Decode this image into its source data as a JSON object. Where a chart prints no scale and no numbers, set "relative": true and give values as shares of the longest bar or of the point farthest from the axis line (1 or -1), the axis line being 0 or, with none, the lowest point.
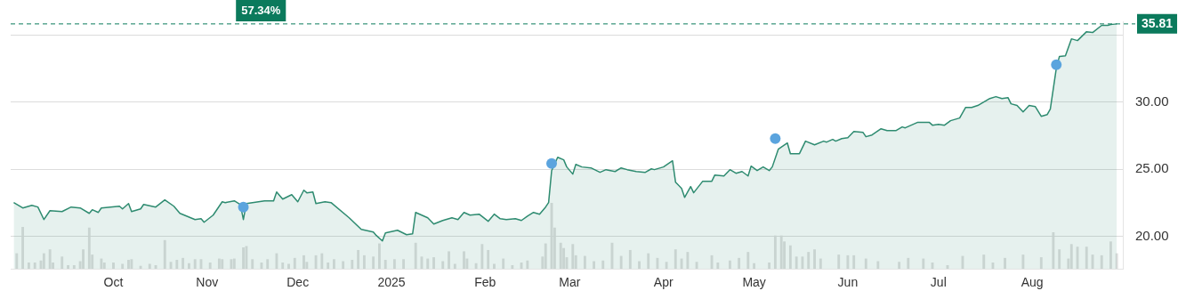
{
  "chart_data": [
    {
      "type": "area",
      "grid": "y",
      "legend": false,
      "xlim": [
        "2024-08-28",
        "2025-08-31"
      ],
      "xticks": [
        {
          "value": "2024-10-01",
          "label": "Oct"
        },
        {
          "value": "2024-11-01",
          "label": "Nov"
        },
        {
          "value": "2024-12-01",
          "label": "Dec"
        },
        {
          "value": "2025-01-01",
          "label": "2025"
        },
        {
          "value": "2025-02-01",
          "label": "Feb"
        },
        {
          "value": "2025-03-01",
          "label": "Mar"
        },
        {
          "value": "2025-04-01",
          "label": "Apr"
        },
        {
          "value": "2025-05-01",
          "label": "May"
        },
        {
          "value": "2025-06-01",
          "label": "Jun"
        },
        {
          "value": "2025-07-01",
          "label": "Jul"
        },
        {
          "value": "2025-08-01",
          "label": "Aug"
        }
      ],
      "ylim": [
        17.6,
        36
      ],
      "yticks": [
        {
          "value": 20,
          "label": "20.00"
        },
        {
          "value": 25,
          "label": "25.00"
        },
        {
          "value": 30,
          "label": "30.00"
        },
        {
          "value": 35,
          "label": null
        }
      ],
      "ref_lines": [
        {
          "axis": "y",
          "value": 35.81,
          "label": "35.81",
          "color": "#0b7a5c",
          "line_style": "dashed"
        }
      ],
      "annotations": [
        "57.34%"
      ],
      "series": [
        {
          "color": "#2e8b70",
          "marker": "none",
          "x": [
            "2024-08-29",
            "2024-09-01",
            "2024-09-04",
            "2024-09-06",
            "2024-09-08",
            "2024-09-10",
            "2024-09-14",
            "2024-09-17",
            "2024-09-20",
            "2024-09-23",
            "2024-09-24",
            "2024-09-26",
            "2024-09-27",
            "2024-09-30",
            "2024-10-03",
            "2024-10-04",
            "2024-10-06",
            "2024-10-07",
            "2024-10-10",
            "2024-10-11",
            "2024-10-15",
            "2024-10-18",
            "2024-10-21",
            "2024-10-23",
            "2024-10-28",
            "2024-10-30",
            "2024-10-31",
            "2024-11-03",
            "2024-11-06",
            "2024-11-07",
            "2024-11-10",
            "2024-11-12",
            "2024-11-13",
            "2024-11-14",
            "2024-11-18",
            "2024-11-20",
            "2024-11-23",
            "2024-11-24",
            "2024-11-26",
            "2024-11-29",
            "2024-12-01",
            "2024-12-03",
            "2024-12-04",
            "2024-12-06",
            "2024-12-07",
            "2024-12-10",
            "2024-12-12",
            "2024-12-18",
            "2024-12-22",
            "2024-12-26",
            "2024-12-27",
            "2024-12-29",
            "2024-12-30",
            "2025-01-03",
            "2025-01-06",
            "2025-01-08",
            "2025-01-09",
            "2025-01-13",
            "2025-01-15",
            "2025-01-18",
            "2025-01-21",
            "2025-01-23",
            "2025-01-25",
            "2025-01-27",
            "2025-01-30",
            "2025-02-02",
            "2025-02-04",
            "2025-02-06",
            "2025-02-08",
            "2025-02-11",
            "2025-02-13",
            "2025-02-15",
            "2025-02-17",
            "2025-02-19",
            "2025-02-21",
            "2025-02-22",
            "2025-02-23",
            "2025-02-25",
            "2025-02-27",
            "2025-02-28",
            "2025-03-02",
            "2025-03-03",
            "2025-03-05",
            "2025-03-08",
            "2025-03-11",
            "2025-03-13",
            "2025-03-16",
            "2025-03-18",
            "2025-03-20",
            "2025-03-23",
            "2025-03-26",
            "2025-03-28",
            "2025-03-29",
            "2025-04-01",
            "2025-04-04",
            "2025-04-05",
            "2025-04-07",
            "2025-04-08",
            "2025-04-10",
            "2025-04-11",
            "2025-04-14",
            "2025-04-17",
            "2025-04-18",
            "2025-04-21",
            "2025-04-23",
            "2025-04-25",
            "2025-04-27",
            "2025-04-29",
            "2025-04-30",
            "2025-05-02",
            "2025-05-04",
            "2025-05-06",
            "2025-05-07",
            "2025-05-09",
            "2025-05-12",
            "2025-05-13",
            "2025-05-16",
            "2025-05-18",
            "2025-05-21",
            "2025-05-24",
            "2025-05-25",
            "2025-05-27",
            "2025-05-28",
            "2025-05-30",
            "2025-06-01",
            "2025-06-03",
            "2025-06-06",
            "2025-06-07",
            "2025-06-09",
            "2025-06-12",
            "2025-06-14",
            "2025-06-17",
            "2025-06-19",
            "2025-06-20",
            "2025-06-24",
            "2025-06-28",
            "2025-06-29",
            "2025-07-01",
            "2025-07-03",
            "2025-07-05",
            "2025-07-08",
            "2025-07-10",
            "2025-07-12",
            "2025-07-14",
            "2025-07-18",
            "2025-07-20",
            "2025-07-22",
            "2025-07-24",
            "2025-07-25",
            "2025-07-27",
            "2025-07-29",
            "2025-07-31",
            "2025-08-02",
            "2025-08-04",
            "2025-08-06",
            "2025-08-07",
            "2025-08-09",
            "2025-08-10",
            "2025-08-12",
            "2025-08-14",
            "2025-08-16",
            "2025-08-19",
            "2025-08-21",
            "2025-08-24",
            "2025-08-26",
            "2025-08-27",
            "2025-08-29"
          ],
          "values": [
            22.52,
            22.12,
            22.32,
            22.19,
            21.26,
            21.92,
            21.85,
            22.19,
            22.12,
            21.72,
            21.99,
            21.79,
            22.12,
            22.19,
            22.25,
            22.05,
            22.45,
            21.85,
            22.05,
            22.38,
            22.19,
            22.72,
            22.25,
            21.72,
            21.26,
            21.32,
            21.06,
            21.59,
            22.58,
            22.52,
            22.65,
            22.38,
            21.26,
            22.45,
            22.58,
            22.65,
            22.65,
            23.31,
            22.78,
            23.11,
            22.58,
            23.44,
            23.25,
            23.31,
            22.45,
            22.58,
            22.52,
            21.39,
            20.53,
            20.33,
            20.07,
            19.67,
            20.26,
            20.46,
            20.13,
            20.2,
            21.79,
            21.39,
            20.93,
            21.19,
            21.39,
            21.26,
            21.79,
            21.59,
            21.66,
            21.13,
            21.66,
            21.32,
            21.26,
            21.32,
            21.19,
            21.52,
            21.79,
            21.66,
            22.19,
            22.52,
            24.9,
            25.89,
            25.7,
            25.17,
            24.64,
            25.36,
            25.17,
            25.1,
            24.77,
            24.97,
            24.83,
            25.1,
            24.97,
            24.83,
            24.77,
            25.03,
            24.97,
            25.17,
            25.63,
            24.04,
            23.58,
            22.91,
            23.71,
            23.25,
            24.11,
            24.11,
            24.57,
            24.5,
            24.97,
            24.7,
            24.83,
            24.5,
            25.23,
            24.9,
            25.17,
            24.9,
            25.17,
            26.49,
            26.95,
            26.16,
            26.16,
            27.09,
            26.82,
            27.09,
            27.02,
            27.22,
            27.09,
            27.28,
            27.35,
            27.81,
            27.75,
            27.42,
            27.55,
            28.01,
            27.88,
            27.88,
            28.15,
            28.08,
            28.48,
            28.48,
            28.28,
            28.34,
            28.28,
            28.61,
            28.81,
            29.6,
            29.6,
            29.74,
            30.26,
            30.4,
            30.26,
            30.33,
            29.87,
            29.74,
            29.27,
            29.74,
            29.67,
            28.94,
            29.07,
            29.47,
            32.52,
            33.38,
            33.44,
            34.7,
            34.57,
            35.23,
            35.17,
            35.7,
            35.7,
            35.76,
            35.81
          ]
        },
        {
          "type": "scatter",
          "color": "#5ba4de",
          "marker": "circle",
          "x": [
            "2024-11-13",
            "2025-02-23",
            "2025-05-08",
            "2025-08-09"
          ],
          "values": [
            22.19,
            25.43,
            27.28,
            32.78
          ]
        }
      ]
    },
    {
      "type": "bar",
      "relative": true,
      "color": "#dedede",
      "xlim": [
        "2024-08-28",
        "2025-08-31"
      ],
      "x": [
        "2024-08-30",
        "2024-09-01",
        "2024-09-03",
        "2024-09-05",
        "2024-09-07",
        "2024-09-08",
        "2024-09-10",
        "2024-09-11",
        "2024-09-14",
        "2024-09-16",
        "2024-09-18",
        "2024-09-20",
        "2024-09-21",
        "2024-09-23",
        "2024-09-24",
        "2024-09-27",
        "2024-09-28",
        "2024-10-01",
        "2024-10-04",
        "2024-10-06",
        "2024-10-07",
        "2024-10-10",
        "2024-10-13",
        "2024-10-15",
        "2024-10-18",
        "2024-10-20",
        "2024-10-22",
        "2024-10-24",
        "2024-10-26",
        "2024-10-28",
        "2024-10-30",
        "2024-11-02",
        "2024-11-05",
        "2024-11-06",
        "2024-11-09",
        "2024-11-10",
        "2024-11-13",
        "2024-11-14",
        "2024-11-16",
        "2024-11-19",
        "2024-11-21",
        "2024-11-24",
        "2024-11-26",
        "2024-11-28",
        "2024-11-30",
        "2024-12-03",
        "2024-12-04",
        "2024-12-07",
        "2024-12-09",
        "2024-12-11",
        "2024-12-13",
        "2024-12-16",
        "2024-12-19",
        "2024-12-21",
        "2024-12-23",
        "2024-12-26",
        "2024-12-28",
        "2024-12-30",
        "2025-01-02",
        "2025-01-05",
        "2025-01-09",
        "2025-01-11",
        "2025-01-13",
        "2025-01-15",
        "2025-01-18",
        "2025-01-20",
        "2025-01-22",
        "2025-01-25",
        "2025-01-26",
        "2025-01-29",
        "2025-01-31",
        "2025-02-02",
        "2025-02-04",
        "2025-02-07",
        "2025-02-10",
        "2025-02-13",
        "2025-02-15",
        "2025-02-20",
        "2025-02-21",
        "2025-02-23",
        "2025-02-24",
        "2025-02-26",
        "2025-02-27",
        "2025-02-28",
        "2025-03-02",
        "2025-03-03",
        "2025-03-06",
        "2025-03-09",
        "2025-03-12",
        "2025-03-15",
        "2025-03-18",
        "2025-03-21",
        "2025-03-24",
        "2025-03-27",
        "2025-03-30",
        "2025-04-02",
        "2025-04-05",
        "2025-04-07",
        "2025-04-09",
        "2025-04-12",
        "2025-04-17",
        "2025-04-19",
        "2025-04-23",
        "2025-04-26",
        "2025-04-29",
        "2025-05-01",
        "2025-05-06",
        "2025-05-08",
        "2025-05-10",
        "2025-05-11",
        "2025-05-13",
        "2025-05-15",
        "2025-05-17",
        "2025-05-19",
        "2025-05-21",
        "2025-05-23",
        "2025-05-29",
        "2025-06-01",
        "2025-06-03",
        "2025-06-07",
        "2025-06-11",
        "2025-06-18",
        "2025-06-21",
        "2025-06-26",
        "2025-06-29",
        "2025-07-04",
        "2025-07-09",
        "2025-07-16",
        "2025-07-19",
        "2025-07-23",
        "2025-07-29",
        "2025-08-04",
        "2025-08-08",
        "2025-08-10",
        "2025-08-13",
        "2025-08-14",
        "2025-08-16",
        "2025-08-19",
        "2025-08-21",
        "2025-08-24",
        "2025-08-27",
        "2025-08-29"
      ],
      "values": [
        0.23,
        0.63,
        0.09,
        0.09,
        0.12,
        0.23,
        0.29,
        0.09,
        0.18,
        0.05,
        0.05,
        0.11,
        0.29,
        0.62,
        0.21,
        0.15,
        0.09,
        0.09,
        0.07,
        0.13,
        0.14,
        0.04,
        0.07,
        0.05,
        0.43,
        0.1,
        0.13,
        0.16,
        0.08,
        0.14,
        0.14,
        0.09,
        0.15,
        0.14,
        0.14,
        0.15,
        0.32,
        0.34,
        0.14,
        0.09,
        0.14,
        0.23,
        0.09,
        0.07,
        0.16,
        0.2,
        0.1,
        0.2,
        0.23,
        0.09,
        0.14,
        0.11,
        0.13,
        0.28,
        0.2,
        0.18,
        0.38,
        0.13,
        0.14,
        0.14,
        0.39,
        0.18,
        0.15,
        0.17,
        0.11,
        0.26,
        0.07,
        0.26,
        0.15,
        0.08,
        0.37,
        0.28,
        0.07,
        0.15,
        0.05,
        0.09,
        0.12,
        0.18,
        0.38,
        1.0,
        0.62,
        0.39,
        0.31,
        0.17,
        0.37,
        0.2,
        0.19,
        0.11,
        0.12,
        0.39,
        0.19,
        0.28,
        0.11,
        0.23,
        0.16,
        0.1,
        0.29,
        0.15,
        0.25,
        0.1,
        0.2,
        0.09,
        0.12,
        0.16,
        0.25,
        0.08,
        0.09,
        0.5,
        0.5,
        0.41,
        0.35,
        0.18,
        0.18,
        0.25,
        0.29,
        0.15,
        0.21,
        0.2,
        0.2,
        0.15,
        0.11,
        0.1,
        0.16,
        0.15,
        0.09,
        0.05,
        0.19,
        0.21,
        0.09,
        0.16,
        0.21,
        0.17,
        0.55,
        0.29,
        0.15,
        0.37,
        0.33,
        0.33,
        0.21,
        0.2,
        0.41,
        0.23
      ]
    }
  ]
}
